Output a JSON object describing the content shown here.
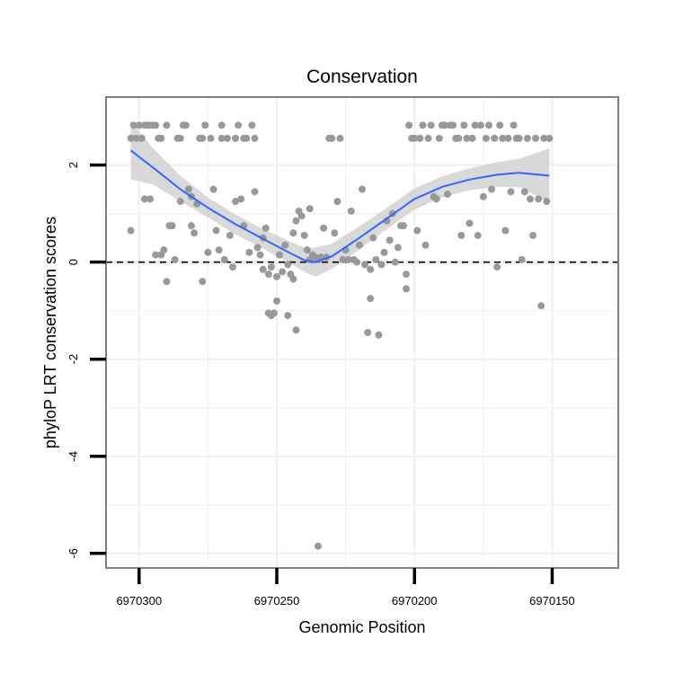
{
  "chart_data": {
    "type": "scatter",
    "title": "Conservation",
    "xlabel": "Genomic Position",
    "ylabel": "phyloP LRT conservation scores",
    "x_reversed": true,
    "xlim": [
      6970312,
      6970126
    ],
    "ylim": [
      -6.3,
      3.4
    ],
    "x_ticks": [
      {
        "value": 6970300,
        "label": "6970300"
      },
      {
        "value": 6970250,
        "label": "6970250"
      },
      {
        "value": 6970200,
        "label": "6970200"
      },
      {
        "value": 6970150,
        "label": "6970150"
      }
    ],
    "y_ticks": [
      {
        "value": 2,
        "label": "2"
      },
      {
        "value": 0,
        "label": "0"
      },
      {
        "value": -2,
        "label": "-2"
      },
      {
        "value": -4,
        "label": "-4"
      },
      {
        "value": -6,
        "label": "-6"
      }
    ],
    "grid": true,
    "reference_line": {
      "y": 0,
      "style": "dashed"
    },
    "colors": {
      "points": "#999999",
      "smooth_line": "#3366ff",
      "confidence_band": "#cccccc",
      "panel_border": "#7f7f7f",
      "grid": "#f2f2f2",
      "reference_line": "#000000"
    },
    "points": [
      {
        "x": 6970303,
        "y": 0.65
      },
      {
        "x": 6970303,
        "y": 2.55
      },
      {
        "x": 6970302,
        "y": 2.82
      },
      {
        "x": 6970301,
        "y": 2.55
      },
      {
        "x": 6970300,
        "y": 2.82
      },
      {
        "x": 6970299,
        "y": 2.55
      },
      {
        "x": 6970298,
        "y": 1.3
      },
      {
        "x": 6970298,
        "y": 2.82
      },
      {
        "x": 6970297,
        "y": 2.82
      },
      {
        "x": 6970296,
        "y": 1.3
      },
      {
        "x": 6970296,
        "y": 2.82
      },
      {
        "x": 6970295,
        "y": 2.82
      },
      {
        "x": 6970294,
        "y": 2.82
      },
      {
        "x": 6970294,
        "y": 0.15
      },
      {
        "x": 6970293,
        "y": 2.55
      },
      {
        "x": 6970292,
        "y": 2.55
      },
      {
        "x": 6970292,
        "y": 0.15
      },
      {
        "x": 6970291,
        "y": 0.25
      },
      {
        "x": 6970290,
        "y": 2.82
      },
      {
        "x": 6970290,
        "y": -0.4
      },
      {
        "x": 6970289,
        "y": 0.75
      },
      {
        "x": 6970288,
        "y": 0.75
      },
      {
        "x": 6970287,
        "y": 0.05
      },
      {
        "x": 6970286,
        "y": 2.55
      },
      {
        "x": 6970285,
        "y": 2.55
      },
      {
        "x": 6970285,
        "y": 1.25
      },
      {
        "x": 6970284,
        "y": 2.82
      },
      {
        "x": 6970283,
        "y": 2.82
      },
      {
        "x": 6970282,
        "y": 1.5
      },
      {
        "x": 6970281,
        "y": 0.75
      },
      {
        "x": 6970281,
        "y": 1.35
      },
      {
        "x": 6970280,
        "y": 0.6
      },
      {
        "x": 6970279,
        "y": 1.2
      },
      {
        "x": 6970278,
        "y": 2.55
      },
      {
        "x": 6970277,
        "y": 2.55
      },
      {
        "x": 6970277,
        "y": -0.4
      },
      {
        "x": 6970276,
        "y": 2.82
      },
      {
        "x": 6970275,
        "y": 0.2
      },
      {
        "x": 6970274,
        "y": 2.55
      },
      {
        "x": 6970273,
        "y": 1.5
      },
      {
        "x": 6970272,
        "y": 0.65
      },
      {
        "x": 6970271,
        "y": 0.25
      },
      {
        "x": 6970270,
        "y": 2.55
      },
      {
        "x": 6970270,
        "y": 2.82
      },
      {
        "x": 6970269,
        "y": 0.05
      },
      {
        "x": 6970268,
        "y": 2.55
      },
      {
        "x": 6970267,
        "y": 0.55
      },
      {
        "x": 6970266,
        "y": -0.1
      },
      {
        "x": 6970265,
        "y": 2.55
      },
      {
        "x": 6970265,
        "y": 1.25
      },
      {
        "x": 6970264,
        "y": 2.82
      },
      {
        "x": 6970263,
        "y": 1.3
      },
      {
        "x": 6970262,
        "y": 0.75
      },
      {
        "x": 6970262,
        "y": 2.55
      },
      {
        "x": 6970261,
        "y": 2.55
      },
      {
        "x": 6970260,
        "y": 0.2
      },
      {
        "x": 6970259,
        "y": 2.82
      },
      {
        "x": 6970258,
        "y": 1.45
      },
      {
        "x": 6970258,
        "y": 2.55
      },
      {
        "x": 6970257,
        "y": 0.3
      },
      {
        "x": 6970256,
        "y": 0.15
      },
      {
        "x": 6970255,
        "y": 0.5
      },
      {
        "x": 6970255,
        "y": -0.15
      },
      {
        "x": 6970254,
        "y": 0.7
      },
      {
        "x": 6970253,
        "y": -0.25
      },
      {
        "x": 6970253,
        "y": -1.05
      },
      {
        "x": 6970252,
        "y": -1.1
      },
      {
        "x": 6970252,
        "y": -0.1
      },
      {
        "x": 6970251,
        "y": -1.05
      },
      {
        "x": 6970250,
        "y": -0.3
      },
      {
        "x": 6970250,
        "y": -0.8
      },
      {
        "x": 6970249,
        "y": 0.15
      },
      {
        "x": 6970248,
        "y": -0.2
      },
      {
        "x": 6970247,
        "y": 0.35
      },
      {
        "x": 6970246,
        "y": -1.1
      },
      {
        "x": 6970246,
        "y": -0.05
      },
      {
        "x": 6970245,
        "y": -0.25
      },
      {
        "x": 6970244,
        "y": 0.6
      },
      {
        "x": 6970244,
        "y": -0.35
      },
      {
        "x": 6970243,
        "y": -1.4
      },
      {
        "x": 6970243,
        "y": 0.85
      },
      {
        "x": 6970242,
        "y": 1.05
      },
      {
        "x": 6970241,
        "y": 0.95
      },
      {
        "x": 6970240,
        "y": 0.55
      },
      {
        "x": 6970239,
        "y": 0.25
      },
      {
        "x": 6970238,
        "y": 1.1
      },
      {
        "x": 6970238,
        "y": 0.05
      },
      {
        "x": 6970237,
        "y": 0.15
      },
      {
        "x": 6970236,
        "y": 0.1
      },
      {
        "x": 6970235,
        "y": 0.05
      },
      {
        "x": 6970234,
        "y": 0.1
      },
      {
        "x": 6970233,
        "y": 0.7
      },
      {
        "x": 6970235,
        "y": -5.85
      },
      {
        "x": 6970232,
        "y": 0.1
      },
      {
        "x": 6970231,
        "y": 2.55
      },
      {
        "x": 6970230,
        "y": 2.55
      },
      {
        "x": 6970229,
        "y": 0.6
      },
      {
        "x": 6970228,
        "y": 1.25
      },
      {
        "x": 6970227,
        "y": 2.55
      },
      {
        "x": 6970226,
        "y": 0.05
      },
      {
        "x": 6970225,
        "y": 0.25
      },
      {
        "x": 6970224,
        "y": 0.05
      },
      {
        "x": 6970223,
        "y": 1.05
      },
      {
        "x": 6970222,
        "y": 0.05
      },
      {
        "x": 6970221,
        "y": 0.0
      },
      {
        "x": 6970220,
        "y": 0.35
      },
      {
        "x": 6970219,
        "y": 1.5
      },
      {
        "x": 6970218,
        "y": -0.05
      },
      {
        "x": 6970217,
        "y": -1.45
      },
      {
        "x": 6970216,
        "y": -0.15
      },
      {
        "x": 6970216,
        "y": -0.75
      },
      {
        "x": 6970215,
        "y": 0.5
      },
      {
        "x": 6970214,
        "y": 0.05
      },
      {
        "x": 6970213,
        "y": -1.5
      },
      {
        "x": 6970212,
        "y": -0.05
      },
      {
        "x": 6970211,
        "y": 0.2
      },
      {
        "x": 6970210,
        "y": 0.85
      },
      {
        "x": 6970209,
        "y": 0.45
      },
      {
        "x": 6970208,
        "y": 1.0
      },
      {
        "x": 6970207,
        "y": 0.0
      },
      {
        "x": 6970206,
        "y": 0.3
      },
      {
        "x": 6970205,
        "y": 0.75
      },
      {
        "x": 6970204,
        "y": 0.75
      },
      {
        "x": 6970203,
        "y": -0.25
      },
      {
        "x": 6970203,
        "y": -0.55
      },
      {
        "x": 6970202,
        "y": 2.82
      },
      {
        "x": 6970201,
        "y": 2.55
      },
      {
        "x": 6970200,
        "y": 2.55
      },
      {
        "x": 6970199,
        "y": 0.65
      },
      {
        "x": 6970198,
        "y": 2.55
      },
      {
        "x": 6970197,
        "y": 2.82
      },
      {
        "x": 6970196,
        "y": 0.35
      },
      {
        "x": 6970195,
        "y": 2.55
      },
      {
        "x": 6970194,
        "y": 2.82
      },
      {
        "x": 6970193,
        "y": 1.35
      },
      {
        "x": 6970192,
        "y": 1.3
      },
      {
        "x": 6970191,
        "y": 2.55
      },
      {
        "x": 6970190,
        "y": 2.82
      },
      {
        "x": 6970189,
        "y": 2.82
      },
      {
        "x": 6970188,
        "y": 1.4
      },
      {
        "x": 6970187,
        "y": 2.82
      },
      {
        "x": 6970186,
        "y": 2.82
      },
      {
        "x": 6970185,
        "y": 2.55
      },
      {
        "x": 6970184,
        "y": 2.55
      },
      {
        "x": 6970183,
        "y": 0.55
      },
      {
        "x": 6970182,
        "y": 2.82
      },
      {
        "x": 6970181,
        "y": 2.55
      },
      {
        "x": 6970180,
        "y": 0.8
      },
      {
        "x": 6970179,
        "y": 2.55
      },
      {
        "x": 6970178,
        "y": 2.82
      },
      {
        "x": 6970177,
        "y": 0.55
      },
      {
        "x": 6970176,
        "y": 2.82
      },
      {
        "x": 6970175,
        "y": 1.35
      },
      {
        "x": 6970174,
        "y": 2.55
      },
      {
        "x": 6970173,
        "y": 2.82
      },
      {
        "x": 6970172,
        "y": 1.5
      },
      {
        "x": 6970171,
        "y": 2.55
      },
      {
        "x": 6970170,
        "y": -0.1
      },
      {
        "x": 6970169,
        "y": 2.82
      },
      {
        "x": 6970168,
        "y": 2.55
      },
      {
        "x": 6970167,
        "y": 0.65
      },
      {
        "x": 6970166,
        "y": 2.55
      },
      {
        "x": 6970165,
        "y": 1.45
      },
      {
        "x": 6970164,
        "y": 2.82
      },
      {
        "x": 6970163,
        "y": 2.55
      },
      {
        "x": 6970162,
        "y": 2.55
      },
      {
        "x": 6970161,
        "y": 0.05
      },
      {
        "x": 6970160,
        "y": 1.45
      },
      {
        "x": 6970159,
        "y": 2.55
      },
      {
        "x": 6970158,
        "y": 1.3
      },
      {
        "x": 6970157,
        "y": 0.55
      },
      {
        "x": 6970156,
        "y": 2.55
      },
      {
        "x": 6970155,
        "y": 1.3
      },
      {
        "x": 6970154,
        "y": -0.9
      },
      {
        "x": 6970153,
        "y": 2.55
      },
      {
        "x": 6970152,
        "y": 1.25
      },
      {
        "x": 6970151,
        "y": 2.55
      }
    ],
    "smooth": [
      {
        "x": 6970303,
        "y": 2.3,
        "lo": 1.7,
        "hi": 2.9
      },
      {
        "x": 6970295,
        "y": 1.95,
        "lo": 1.6,
        "hi": 2.35
      },
      {
        "x": 6970285,
        "y": 1.5,
        "lo": 1.25,
        "hi": 1.78
      },
      {
        "x": 6970275,
        "y": 1.12,
        "lo": 0.92,
        "hi": 1.33
      },
      {
        "x": 6970265,
        "y": 0.78,
        "lo": 0.57,
        "hi": 0.98
      },
      {
        "x": 6970255,
        "y": 0.48,
        "lo": 0.28,
        "hi": 0.68
      },
      {
        "x": 6970245,
        "y": 0.18,
        "lo": -0.04,
        "hi": 0.42
      },
      {
        "x": 6970240,
        "y": 0.04,
        "lo": -0.2,
        "hi": 0.3
      },
      {
        "x": 6970236,
        "y": 0.0,
        "lo": -0.3,
        "hi": 0.3
      },
      {
        "x": 6970230,
        "y": 0.12,
        "lo": -0.14,
        "hi": 0.38
      },
      {
        "x": 6970220,
        "y": 0.5,
        "lo": 0.26,
        "hi": 0.74
      },
      {
        "x": 6970210,
        "y": 0.9,
        "lo": 0.68,
        "hi": 1.12
      },
      {
        "x": 6970200,
        "y": 1.3,
        "lo": 1.08,
        "hi": 1.52
      },
      {
        "x": 6970190,
        "y": 1.55,
        "lo": 1.33,
        "hi": 1.77
      },
      {
        "x": 6970180,
        "y": 1.7,
        "lo": 1.48,
        "hi": 1.93
      },
      {
        "x": 6970170,
        "y": 1.8,
        "lo": 1.55,
        "hi": 2.06
      },
      {
        "x": 6970162,
        "y": 1.84,
        "lo": 1.55,
        "hi": 2.13
      },
      {
        "x": 6970151,
        "y": 1.78,
        "lo": 1.22,
        "hi": 2.34
      }
    ]
  }
}
